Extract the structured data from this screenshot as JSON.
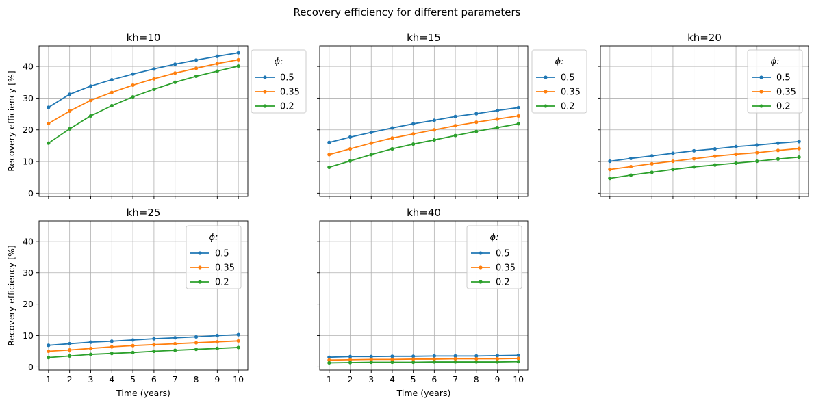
{
  "figure": {
    "suptitle": "Recovery efficiency for different parameters"
  },
  "chart_data": [
    {
      "type": "line",
      "title": "kh=10",
      "xlabel": "",
      "ylabel": "Recovery efficiency [%]",
      "x": [
        1,
        2,
        3,
        4,
        5,
        6,
        7,
        8,
        9,
        10
      ],
      "ylim": [
        -1,
        46.5
      ],
      "yticks": [
        0,
        10,
        20,
        30,
        40
      ],
      "grid": true,
      "legend": {
        "title": "ϕ:",
        "placement": "outside-right"
      },
      "series": [
        {
          "name": "0.5",
          "color": "#1f77b4",
          "values": [
            27.1,
            31.2,
            33.8,
            35.8,
            37.6,
            39.2,
            40.7,
            42.0,
            43.2,
            44.3
          ]
        },
        {
          "name": "0.35",
          "color": "#ff7f0e",
          "values": [
            22.0,
            25.9,
            29.3,
            31.8,
            34.1,
            36.1,
            37.9,
            39.4,
            40.9,
            42.1
          ]
        },
        {
          "name": "0.2",
          "color": "#2ca02c",
          "values": [
            15.8,
            20.3,
            24.4,
            27.6,
            30.4,
            32.8,
            35.0,
            36.9,
            38.5,
            40.1
          ]
        }
      ]
    },
    {
      "type": "line",
      "title": "kh=15",
      "xlabel": "",
      "ylabel": "",
      "x": [
        1,
        2,
        3,
        4,
        5,
        6,
        7,
        8,
        9,
        10
      ],
      "ylim": [
        -1,
        46.5
      ],
      "yticks": [
        0,
        10,
        20,
        30,
        40
      ],
      "grid": true,
      "legend": {
        "title": "ϕ:",
        "placement": "outside-right"
      },
      "series": [
        {
          "name": "0.5",
          "color": "#1f77b4",
          "values": [
            16.0,
            17.7,
            19.2,
            20.6,
            21.9,
            23.0,
            24.2,
            25.1,
            26.1,
            27.0
          ]
        },
        {
          "name": "0.35",
          "color": "#ff7f0e",
          "values": [
            12.2,
            14.0,
            15.8,
            17.4,
            18.7,
            20.0,
            21.3,
            22.4,
            23.4,
            24.4
          ]
        },
        {
          "name": "0.2",
          "color": "#2ca02c",
          "values": [
            8.2,
            10.2,
            12.2,
            14.0,
            15.5,
            16.8,
            18.2,
            19.5,
            20.7,
            21.9
          ]
        }
      ]
    },
    {
      "type": "line",
      "title": "kh=20",
      "xlabel": "",
      "ylabel": "",
      "x": [
        1,
        2,
        3,
        4,
        5,
        6,
        7,
        8,
        9,
        10
      ],
      "ylim": [
        -1,
        46.5
      ],
      "yticks": [
        0,
        10,
        20,
        30,
        40
      ],
      "grid": true,
      "legend": {
        "title": "ϕ:",
        "placement": "top-right"
      },
      "series": [
        {
          "name": "0.5",
          "color": "#1f77b4",
          "values": [
            10.1,
            11.0,
            11.8,
            12.6,
            13.4,
            14.0,
            14.7,
            15.2,
            15.8,
            16.3
          ]
        },
        {
          "name": "0.35",
          "color": "#ff7f0e",
          "values": [
            7.5,
            8.4,
            9.3,
            10.1,
            10.9,
            11.7,
            12.3,
            12.8,
            13.5,
            14.1
          ]
        },
        {
          "name": "0.2",
          "color": "#2ca02c",
          "values": [
            4.7,
            5.7,
            6.6,
            7.5,
            8.3,
            8.9,
            9.5,
            10.1,
            10.8,
            11.4
          ]
        }
      ]
    },
    {
      "type": "line",
      "title": "kh=25",
      "xlabel": "Time (years)",
      "ylabel": "Recovery efficiency [%]",
      "x": [
        1,
        2,
        3,
        4,
        5,
        6,
        7,
        8,
        9,
        10
      ],
      "ylim": [
        -1,
        46.5
      ],
      "yticks": [
        0,
        10,
        20,
        30,
        40
      ],
      "grid": true,
      "legend": {
        "title": "ϕ:",
        "placement": "top-right"
      },
      "series": [
        {
          "name": "0.5",
          "color": "#1f77b4",
          "values": [
            6.9,
            7.4,
            7.9,
            8.2,
            8.6,
            9.0,
            9.3,
            9.6,
            10.0,
            10.3
          ]
        },
        {
          "name": "0.35",
          "color": "#ff7f0e",
          "values": [
            5.0,
            5.4,
            5.9,
            6.4,
            6.8,
            7.1,
            7.4,
            7.7,
            8.0,
            8.3
          ]
        },
        {
          "name": "0.2",
          "color": "#2ca02c",
          "values": [
            3.0,
            3.5,
            4.0,
            4.3,
            4.6,
            5.0,
            5.3,
            5.6,
            5.9,
            6.2
          ]
        }
      ]
    },
    {
      "type": "line",
      "title": "kh=40",
      "xlabel": "Time (years)",
      "ylabel": "",
      "x": [
        1,
        2,
        3,
        4,
        5,
        6,
        7,
        8,
        9,
        10
      ],
      "ylim": [
        -1,
        46.5
      ],
      "yticks": [
        0,
        10,
        20,
        30,
        40
      ],
      "grid": true,
      "legend": {
        "title": "ϕ:",
        "placement": "top-right"
      },
      "series": [
        {
          "name": "0.5",
          "color": "#1f77b4",
          "values": [
            3.1,
            3.3,
            3.3,
            3.4,
            3.4,
            3.5,
            3.5,
            3.5,
            3.6,
            3.7
          ]
        },
        {
          "name": "0.35",
          "color": "#ff7f0e",
          "values": [
            2.2,
            2.3,
            2.4,
            2.4,
            2.5,
            2.5,
            2.6,
            2.6,
            2.6,
            2.7
          ]
        },
        {
          "name": "0.2",
          "color": "#2ca02c",
          "values": [
            1.3,
            1.4,
            1.5,
            1.5,
            1.5,
            1.6,
            1.6,
            1.6,
            1.6,
            1.7
          ]
        }
      ]
    }
  ]
}
